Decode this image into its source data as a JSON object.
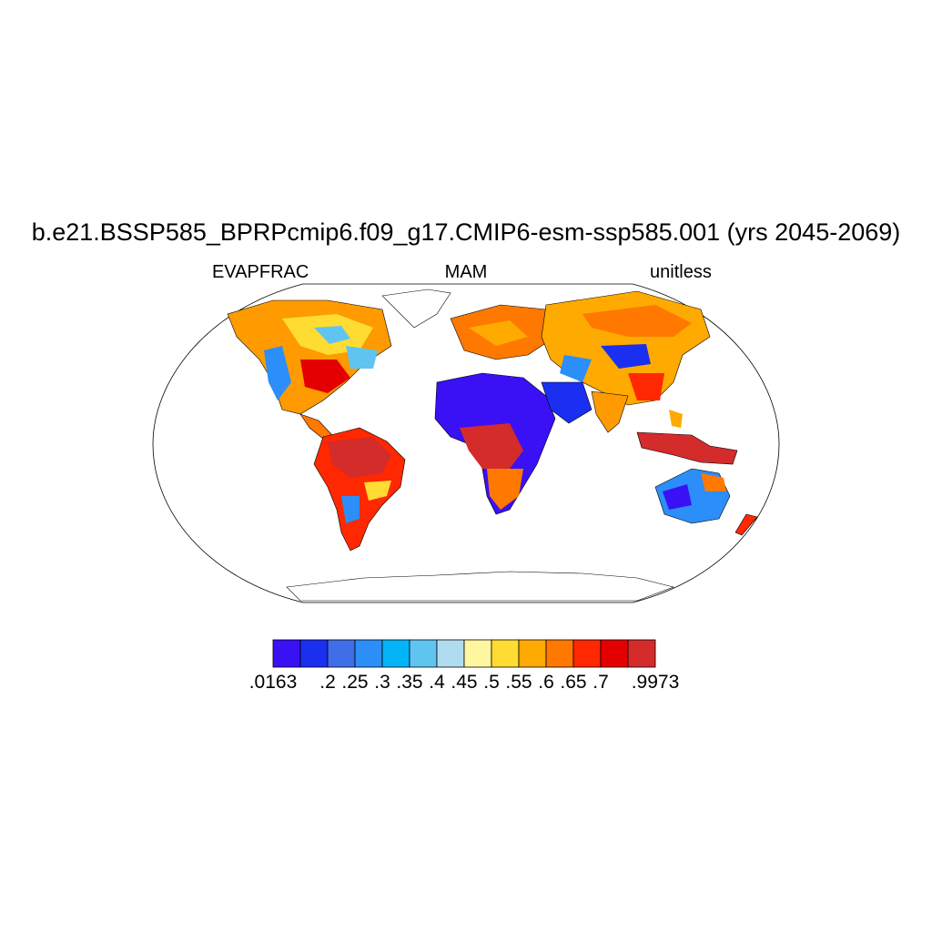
{
  "title": "b.e21.BSSP585_BPRPcmip6.f09_g17.CMIP6-esm-ssp585.001 (yrs 2045-2069)",
  "subtitle_left": "EVAPFRAC",
  "subtitle_center": "MAM",
  "subtitle_right": "unitless",
  "colorbar": {
    "colors": [
      "#3a10f5",
      "#1a2ff0",
      "#3f6ee8",
      "#2c8ef8",
      "#04b4f8",
      "#60c4f0",
      "#b0dcf0",
      "#fff7a0",
      "#fedc32",
      "#ffaa00",
      "#ff7800",
      "#ff2800",
      "#e40000",
      "#d42b2b"
    ],
    "labels": [
      ".0163",
      ".2",
      ".25",
      ".3",
      ".35",
      ".4",
      ".45",
      ".5",
      ".55",
      ".6",
      ".65",
      ".7",
      ".9973"
    ]
  }
}
